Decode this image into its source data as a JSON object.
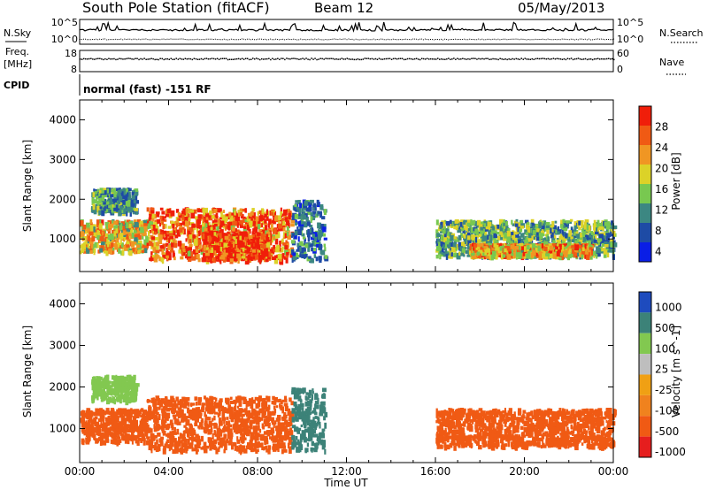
{
  "header": {
    "station": "South Pole Station (fitACF)",
    "beam": "Beam 12",
    "date": "05/May/2013"
  },
  "top_panels": {
    "nsky_label": "N.Sky",
    "nsearch_label": "N.Search",
    "noise_tick_hi": "10^5",
    "noise_tick_lo": "10^0",
    "freq_label": "Freq.",
    "freq_unit": "[MHz]",
    "freq_ticks": [
      "18",
      "8"
    ],
    "nave_label": "Nave",
    "nave_ticks": [
      "60",
      "0"
    ],
    "cpid_label": "CPID",
    "cpid_text": "normal (fast) -151 RF"
  },
  "chart_data": [
    {
      "type": "heatmap",
      "title": "",
      "xlabel": "Time UT",
      "ylabel": "Slant Range [km]",
      "x_range_hours": [
        0,
        24
      ],
      "x_tick_labels": [
        "00:00",
        "04:00",
        "08:00",
        "12:00",
        "16:00",
        "20:00",
        "00:00"
      ],
      "ylim": [
        180,
        4500
      ],
      "y_tick_labels": [
        "1000",
        "2000",
        "3000",
        "4000"
      ],
      "colorbar_label": "Power [dB]",
      "colorbar_ticks": [
        "28",
        "24",
        "20",
        "16",
        "12",
        "8",
        "4"
      ],
      "colorbar_range": [
        0,
        30
      ],
      "colors": [
        "#0a1ee6",
        "#1e4ba5",
        "#3c8782",
        "#78c850",
        "#dcd228",
        "#f09623",
        "#f05a14",
        "#f01e0a"
      ],
      "regions": [
        {
          "t": [
            0.0,
            3.0
          ],
          "r": [
            700,
            1500
          ],
          "level": 18
        },
        {
          "t": [
            3.0,
            9.5
          ],
          "r": [
            500,
            1800
          ],
          "level": 24
        },
        {
          "t": [
            5.5,
            8.5
          ],
          "r": [
            500,
            1200
          ],
          "level": 28
        },
        {
          "t": [
            0.5,
            2.5
          ],
          "r": [
            1700,
            2300
          ],
          "level": 10
        },
        {
          "t": [
            9.5,
            11.0
          ],
          "r": [
            500,
            2000
          ],
          "level": 8
        },
        {
          "t": [
            16.0,
            24.0
          ],
          "r": [
            600,
            1500
          ],
          "level": 12
        },
        {
          "t": [
            17.5,
            23.0
          ],
          "r": [
            600,
            900
          ],
          "level": 20
        }
      ]
    },
    {
      "type": "heatmap",
      "title": "",
      "xlabel": "Time UT",
      "ylabel": "Slant Range [km]",
      "x_range_hours": [
        0,
        24
      ],
      "x_tick_labels": [
        "00:00",
        "04:00",
        "08:00",
        "12:00",
        "16:00",
        "20:00",
        "00:00"
      ],
      "ylim": [
        180,
        4500
      ],
      "y_tick_labels": [
        "1000",
        "2000",
        "3000",
        "4000"
      ],
      "colorbar_label": "Velocity [m s^-1]",
      "colorbar_ticks": [
        "1000",
        "500",
        "100",
        "25",
        "-25",
        "-100",
        "-500",
        "-1000"
      ],
      "colorbar_range": [
        -1000,
        1000
      ],
      "colors": [
        "#e61e1e",
        "#f05a14",
        "#f0821e",
        "#f0a014",
        "#bebebe",
        "#82c850",
        "#3c8278",
        "#1e4bbe"
      ],
      "regions": [
        {
          "t": [
            0.0,
            3.0
          ],
          "r": [
            700,
            1500
          ],
          "level": -200
        },
        {
          "t": [
            3.0,
            9.5
          ],
          "r": [
            500,
            1800
          ],
          "level": -300
        },
        {
          "t": [
            9.5,
            11.0
          ],
          "r": [
            500,
            2000
          ],
          "level": 150
        },
        {
          "t": [
            16.0,
            24.0
          ],
          "r": [
            600,
            1500
          ],
          "level": -200
        },
        {
          "t": [
            0.5,
            2.5
          ],
          "r": [
            1700,
            2300
          ],
          "level": 40
        }
      ]
    }
  ]
}
